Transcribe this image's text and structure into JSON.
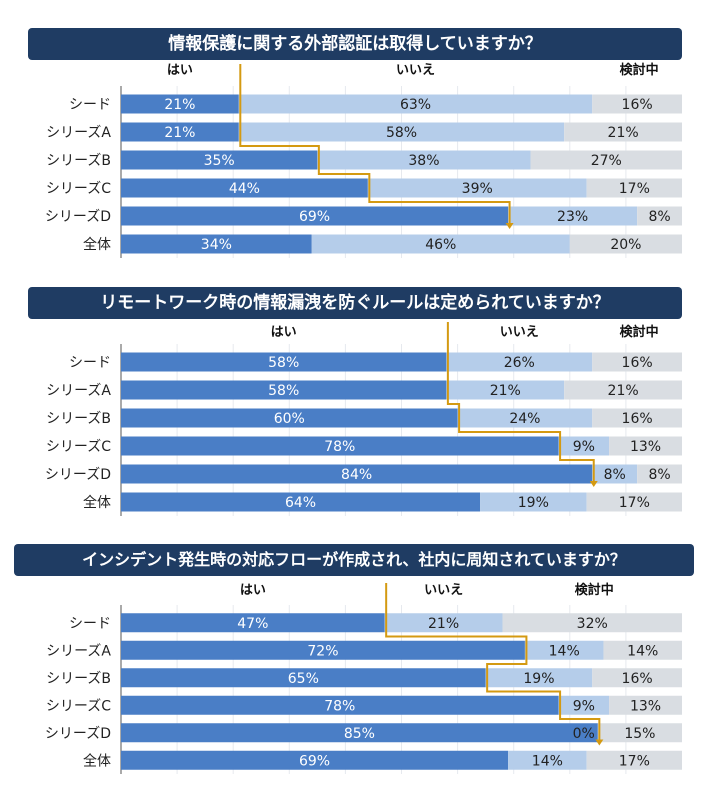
{
  "chart_data": [
    {
      "type": "bar",
      "stacked": "100%",
      "orientation": "horizontal",
      "title": "情報保護に関する外部認証は取得していますか？",
      "series_labels": [
        "はい",
        "いいえ",
        "検討中"
      ],
      "categories": [
        "シード",
        "シリーズA",
        "シリーズB",
        "シリーズC",
        "シリーズD",
        "全体"
      ],
      "series": [
        {
          "name": "はい",
          "values": [
            21,
            21,
            35,
            44,
            69,
            34
          ]
        },
        {
          "name": "いいえ",
          "values": [
            63,
            58,
            38,
            39,
            23,
            46
          ]
        },
        {
          "name": "検討中",
          "values": [
            16,
            21,
            27,
            17,
            8,
            20
          ]
        }
      ],
      "unit": "%"
    },
    {
      "type": "bar",
      "stacked": "100%",
      "orientation": "horizontal",
      "title": "リモートワーク時の情報漏洩を防ぐルールは定められていますか？",
      "series_labels": [
        "はい",
        "いいえ",
        "検討中"
      ],
      "categories": [
        "シード",
        "シリーズA",
        "シリーズB",
        "シリーズC",
        "シリーズD",
        "全体"
      ],
      "series": [
        {
          "name": "はい",
          "values": [
            58,
            58,
            60,
            78,
            84,
            64
          ]
        },
        {
          "name": "いいえ",
          "values": [
            26,
            21,
            24,
            9,
            8,
            19
          ]
        },
        {
          "name": "検討中",
          "values": [
            16,
            21,
            16,
            13,
            8,
            17
          ]
        }
      ],
      "unit": "%"
    },
    {
      "type": "bar",
      "stacked": "100%",
      "orientation": "horizontal",
      "title": "インシデント発生時の対応フローが作成され、社内に周知されていますか？",
      "series_labels": [
        "はい",
        "いいえ",
        "検討中"
      ],
      "categories": [
        "シード",
        "シリーズA",
        "シリーズB",
        "シリーズC",
        "シリーズD",
        "全体"
      ],
      "series": [
        {
          "name": "はい",
          "values": [
            47,
            72,
            65,
            78,
            85,
            69
          ]
        },
        {
          "name": "いいえ",
          "values": [
            21,
            14,
            19,
            9,
            0,
            14
          ]
        },
        {
          "name": "検討中",
          "values": [
            32,
            14,
            16,
            13,
            15,
            17
          ]
        }
      ],
      "unit": "%"
    }
  ],
  "colors": {
    "yes": "#4a7ec6",
    "no": "#b5cdea",
    "considering": "#d9dde2",
    "step_line": "#d49a12",
    "title_bg": "#1f3c63"
  }
}
